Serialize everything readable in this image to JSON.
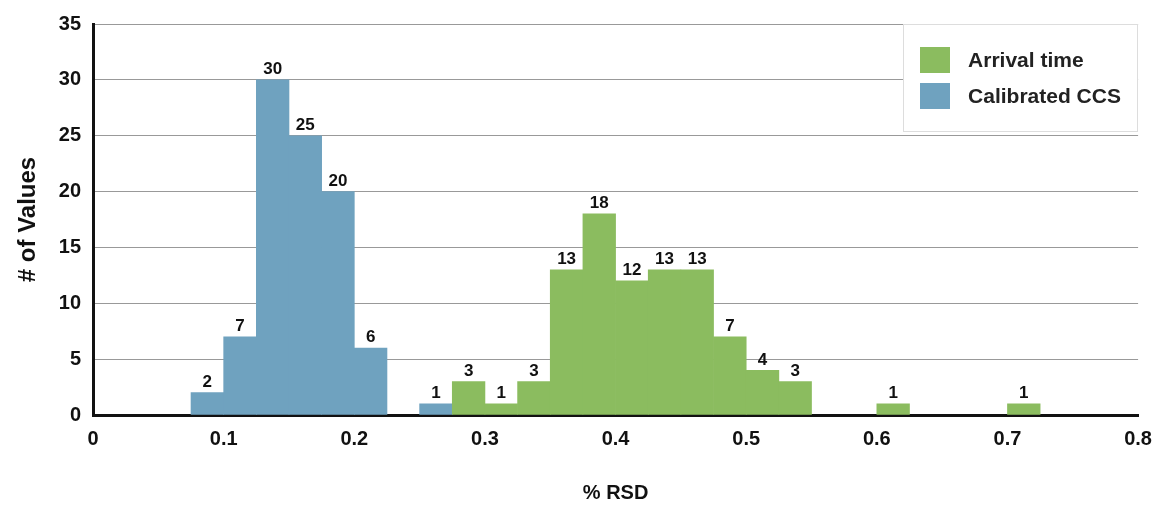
{
  "chart_data": {
    "type": "histogram",
    "xlabel": "% RSD",
    "ylabel": "# of Values",
    "bins": [
      0.075,
      0.1,
      0.125,
      0.15,
      0.175,
      0.2,
      0.225,
      0.25,
      0.275,
      0.3,
      0.325,
      0.35,
      0.375,
      0.4,
      0.425,
      0.45,
      0.475,
      0.5,
      0.525,
      0.55,
      0.575,
      0.6,
      0.625,
      0.65,
      0.675,
      0.7,
      0.725
    ],
    "series": [
      {
        "name": "Arrival time",
        "color": "#8bbc5f",
        "values": [
          null,
          null,
          null,
          null,
          null,
          null,
          null,
          null,
          3,
          1,
          3,
          13,
          18,
          12,
          13,
          13,
          7,
          4,
          3,
          null,
          null,
          1,
          null,
          null,
          null,
          1
        ]
      },
      {
        "name": "Calibrated CCS",
        "color": "#6fa2bf",
        "values": [
          2,
          7,
          30,
          25,
          20,
          6,
          null,
          1,
          null,
          null,
          null,
          null,
          null,
          null,
          null,
          null,
          null,
          null,
          null,
          null,
          null,
          null,
          null,
          null,
          null,
          null
        ]
      }
    ],
    "xlim": [
      0,
      0.8
    ],
    "xticks": [
      0,
      0.1,
      0.2,
      0.3,
      0.4,
      0.5,
      0.6,
      0.7,
      0.8
    ],
    "ylim": [
      0,
      35
    ],
    "yticks": [
      0,
      5,
      10,
      15,
      20,
      25,
      30,
      35
    ],
    "grid": "y",
    "legend": "top right",
    "data_labels": true
  }
}
